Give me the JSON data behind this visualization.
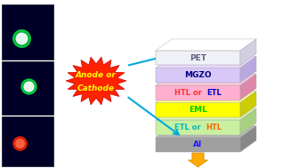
{
  "layers": [
    {
      "name": "Al",
      "color_top": "#a0a0a0",
      "color_side": "#888888",
      "color_right": "#b8b8b8",
      "text_color": "#1a1aff",
      "y": 5
    },
    {
      "name": "ETL or HTL",
      "color_top": "#c8f0a0",
      "color_side": "#a8d080",
      "color_right": "#d8f8b0",
      "text_color_1": "#00cccc",
      "text_color_2": "#ff6600",
      "label_parts": [
        "ETL or ",
        "HTL"
      ],
      "y": 4
    },
    {
      "name": "EML",
      "color_top": "#ffff00",
      "color_side": "#cccc00",
      "color_right": "#ffff88",
      "text_color": "#00cc00",
      "y": 3
    },
    {
      "name": "HTL or ETL",
      "color_top": "#ffb0d0",
      "color_side": "#dd88aa",
      "color_right": "#ffc8e0",
      "text_color_1": "#ff4444",
      "text_color_2": "#0000ff",
      "label_parts": [
        "HTL or ",
        "ETL"
      ],
      "y": 2
    },
    {
      "name": "MGZO",
      "color_top": "#d8c8f8",
      "color_side": "#b8a8e0",
      "color_right": "#e8d8ff",
      "text_color": "#000080",
      "y": 1
    },
    {
      "name": "PET",
      "color_top": "#f0f0f8",
      "color_side": "#d0d0e0",
      "color_right": "#ffffff",
      "text_color": "#606080",
      "y": 0
    }
  ],
  "starburst_color": "#ff2200",
  "starburst_text1": "Anode or",
  "starburst_text2": "Cathode",
  "starburst_text_color": "#ffff00",
  "arrow_color": "#00aadd",
  "down_arrow_color": "#ffaa00",
  "background_color": "#ffffff"
}
